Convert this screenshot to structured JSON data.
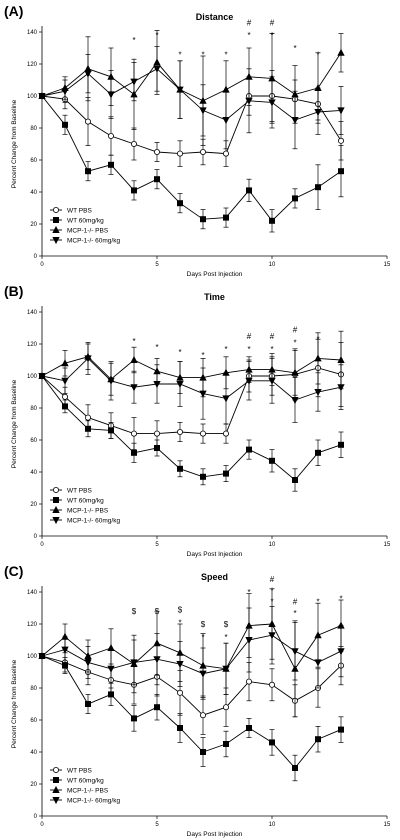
{
  "chart_data": [
    {
      "panel_label": "(A)",
      "type": "line",
      "title": "Distance",
      "xlabel": "Days Post Injection",
      "ylabel": "Percent Change from Baseline",
      "xlim": [
        0,
        15
      ],
      "ylim": [
        0,
        140
      ],
      "xticks": [
        0,
        5,
        10,
        15
      ],
      "yticks": [
        0,
        20,
        40,
        60,
        80,
        100,
        120,
        140
      ],
      "legend_position": "bottom-left",
      "series": [
        {
          "name": "WT PBS",
          "marker": "circle",
          "x": [
            0,
            1,
            2,
            3,
            4,
            5,
            6,
            7,
            8,
            9,
            10,
            11,
            12,
            13
          ],
          "values": [
            100,
            98,
            84,
            75,
            70,
            65,
            64,
            65,
            64,
            100,
            100,
            98,
            95,
            72
          ],
          "errors": [
            0,
            6,
            15,
            12,
            10,
            6,
            8,
            8,
            8,
            12,
            16,
            12,
            10,
            12
          ]
        },
        {
          "name": "WT 60mg/kg",
          "marker": "square",
          "x": [
            0,
            1,
            2,
            3,
            4,
            5,
            6,
            7,
            8,
            9,
            10,
            11,
            12,
            13
          ],
          "values": [
            100,
            82,
            53,
            57,
            41,
            48,
            33,
            23,
            24,
            41,
            22,
            36,
            43,
            53
          ],
          "errors": [
            0,
            6,
            6,
            6,
            6,
            6,
            6,
            6,
            6,
            7,
            7,
            6,
            14,
            16
          ]
        },
        {
          "name": "MCP-1-/- PBS",
          "marker": "triangle-up",
          "x": [
            0,
            1,
            2,
            3,
            4,
            5,
            6,
            7,
            8,
            9,
            10,
            11,
            12,
            13
          ],
          "values": [
            100,
            105,
            117,
            112,
            101,
            121,
            104,
            97,
            104,
            112,
            111,
            101,
            105,
            127
          ],
          "errors": [
            0,
            7,
            20,
            18,
            22,
            20,
            18,
            28,
            18,
            18,
            28,
            18,
            22,
            12
          ]
        },
        {
          "name": "MCP-1-/- 60mg/kg",
          "marker": "triangle-down",
          "x": [
            0,
            1,
            2,
            3,
            4,
            5,
            6,
            7,
            8,
            9,
            10,
            11,
            12,
            13
          ],
          "values": [
            100,
            103,
            114,
            101,
            109,
            117,
            104,
            91,
            85,
            97,
            96,
            85,
            90,
            91
          ],
          "errors": [
            0,
            7,
            12,
            15,
            12,
            14,
            18,
            16,
            18,
            20,
            16,
            18,
            14,
            15
          ]
        }
      ],
      "annotations": [
        {
          "x": 4,
          "y": 135,
          "text": "*"
        },
        {
          "x": 5,
          "y": 138,
          "text": "*"
        },
        {
          "x": 6,
          "y": 126,
          "text": "*"
        },
        {
          "x": 7,
          "y": 126,
          "text": "*"
        },
        {
          "x": 8,
          "y": 126,
          "text": "*"
        },
        {
          "x": 9,
          "y": 138,
          "text": "*"
        },
        {
          "x": 9,
          "y": 146,
          "text": "#"
        },
        {
          "x": 10,
          "y": 138,
          "text": "*"
        },
        {
          "x": 10,
          "y": 146,
          "text": "#"
        },
        {
          "x": 11,
          "y": 130,
          "text": "*"
        },
        {
          "x": 12,
          "y": 126,
          "text": "*"
        }
      ]
    },
    {
      "panel_label": "(B)",
      "type": "line",
      "title": "Time",
      "xlabel": "Days Post Injection",
      "ylabel": "Percent Change from Baseline",
      "xlim": [
        0,
        15
      ],
      "ylim": [
        0,
        140
      ],
      "xticks": [
        0,
        5,
        10,
        15
      ],
      "yticks": [
        0,
        20,
        40,
        60,
        80,
        100,
        120,
        140
      ],
      "legend_position": "bottom-left",
      "series": [
        {
          "name": "WT PBS",
          "marker": "circle",
          "x": [
            0,
            1,
            2,
            3,
            4,
            5,
            6,
            7,
            8,
            9,
            10,
            11,
            12,
            13
          ],
          "values": [
            100,
            87,
            74,
            69,
            64,
            64,
            65,
            64,
            64,
            100,
            100,
            101,
            105,
            101
          ],
          "errors": [
            0,
            6,
            8,
            8,
            10,
            8,
            6,
            6,
            6,
            10,
            12,
            16,
            18,
            20
          ]
        },
        {
          "name": "WT 60mg/kg",
          "marker": "square",
          "x": [
            0,
            1,
            2,
            3,
            4,
            5,
            6,
            7,
            8,
            9,
            10,
            11,
            12,
            13
          ],
          "values": [
            100,
            81,
            67,
            66,
            52,
            55,
            42,
            37,
            39,
            54,
            47,
            35,
            52,
            57
          ],
          "errors": [
            0,
            4,
            5,
            5,
            6,
            5,
            5,
            5,
            5,
            6,
            7,
            7,
            8,
            8
          ]
        },
        {
          "name": "MCP-1-/- PBS",
          "marker": "triangle-up",
          "x": [
            0,
            1,
            2,
            3,
            4,
            5,
            6,
            7,
            8,
            9,
            10,
            11,
            12,
            13
          ],
          "values": [
            100,
            108,
            112,
            98,
            110,
            103,
            99,
            99,
            102,
            104,
            104,
            102,
            111,
            110
          ],
          "errors": [
            0,
            8,
            8,
            10,
            8,
            8,
            10,
            12,
            10,
            8,
            10,
            14,
            16,
            18
          ]
        },
        {
          "name": "MCP-1-/- 60mg/kg",
          "marker": "triangle-down",
          "x": [
            0,
            1,
            2,
            3,
            4,
            5,
            6,
            7,
            8,
            9,
            10,
            11,
            12,
            13
          ],
          "values": [
            100,
            97,
            111,
            97,
            93,
            95,
            95,
            89,
            86,
            97,
            97,
            85,
            90,
            93
          ],
          "errors": [
            0,
            8,
            10,
            12,
            10,
            12,
            14,
            16,
            16,
            12,
            14,
            14,
            12,
            14
          ]
        }
      ],
      "annotations": [
        {
          "x": 4,
          "y": 122,
          "text": "*"
        },
        {
          "x": 5,
          "y": 118,
          "text": "*"
        },
        {
          "x": 6,
          "y": 115,
          "text": "*"
        },
        {
          "x": 7,
          "y": 113,
          "text": "*"
        },
        {
          "x": 8,
          "y": 117,
          "text": "*"
        },
        {
          "x": 9,
          "y": 117,
          "text": "*"
        },
        {
          "x": 9,
          "y": 125,
          "text": "#"
        },
        {
          "x": 10,
          "y": 117,
          "text": "*"
        },
        {
          "x": 10,
          "y": 125,
          "text": "#"
        },
        {
          "x": 11,
          "y": 121,
          "text": "*"
        },
        {
          "x": 11,
          "y": 129,
          "text": "#"
        },
        {
          "x": 12,
          "y": 123,
          "text": "*"
        }
      ]
    },
    {
      "panel_label": "(C)",
      "type": "line",
      "title": "Speed",
      "xlabel": "Days Post Injection",
      "ylabel": "Percent Change from Baseline",
      "xlim": [
        0,
        15
      ],
      "ylim": [
        0,
        140
      ],
      "xticks": [
        0,
        5,
        10,
        15
      ],
      "yticks": [
        0,
        20,
        40,
        60,
        80,
        100,
        120,
        140
      ],
      "legend_position": "bottom-left",
      "series": [
        {
          "name": "WT PBS",
          "marker": "circle",
          "x": [
            0,
            1,
            2,
            3,
            4,
            5,
            6,
            7,
            8,
            9,
            10,
            11,
            12,
            13
          ],
          "values": [
            100,
            96,
            90,
            85,
            82,
            87,
            77,
            63,
            68,
            84,
            82,
            72,
            80,
            94
          ],
          "errors": [
            0,
            6,
            8,
            10,
            12,
            12,
            14,
            12,
            12,
            12,
            10,
            10,
            12,
            12
          ]
        },
        {
          "name": "WT 60mg/kg",
          "marker": "square",
          "x": [
            0,
            1,
            2,
            3,
            4,
            5,
            6,
            7,
            8,
            9,
            10,
            11,
            12,
            13
          ],
          "values": [
            100,
            94,
            70,
            76,
            61,
            68,
            55,
            40,
            45,
            55,
            46,
            30,
            48,
            54
          ],
          "errors": [
            0,
            5,
            6,
            7,
            8,
            8,
            9,
            9,
            8,
            6,
            8,
            8,
            8,
            8
          ]
        },
        {
          "name": "MCP-1-/- PBS",
          "marker": "triangle-up",
          "x": [
            0,
            1,
            2,
            3,
            4,
            5,
            6,
            7,
            8,
            9,
            10,
            11,
            12,
            13
          ],
          "values": [
            100,
            112,
            100,
            105,
            95,
            108,
            102,
            94,
            92,
            119,
            120,
            92,
            113,
            119
          ],
          "errors": [
            0,
            8,
            10,
            12,
            18,
            20,
            18,
            20,
            16,
            20,
            22,
            30,
            20,
            16
          ]
        },
        {
          "name": "MCP-1-/- 60mg/kg",
          "marker": "triangle-down",
          "x": [
            0,
            1,
            2,
            3,
            4,
            5,
            6,
            7,
            8,
            9,
            10,
            11,
            12,
            13
          ],
          "values": [
            100,
            104,
            96,
            92,
            96,
            98,
            95,
            89,
            92,
            110,
            113,
            103,
            96,
            103
          ],
          "errors": [
            0,
            8,
            10,
            12,
            14,
            16,
            14,
            16,
            16,
            20,
            18,
            18,
            16,
            16
          ]
        }
      ],
      "annotations": [
        {
          "x": 4,
          "y": 128,
          "text": "$"
        },
        {
          "x": 5,
          "y": 128,
          "text": "$"
        },
        {
          "x": 6,
          "y": 129,
          "text": "$"
        },
        {
          "x": 6,
          "y": 121,
          "text": "*"
        },
        {
          "x": 7,
          "y": 120,
          "text": "$"
        },
        {
          "x": 7,
          "y": 112,
          "text": "*"
        },
        {
          "x": 8,
          "y": 120,
          "text": "$"
        },
        {
          "x": 8,
          "y": 112,
          "text": "*"
        },
        {
          "x": 9,
          "y": 140,
          "text": "*"
        },
        {
          "x": 10,
          "y": 148,
          "text": "#"
        },
        {
          "x": 10,
          "y": 141,
          "text": "*"
        },
        {
          "x": 10,
          "y": 134,
          "text": "*"
        },
        {
          "x": 11,
          "y": 134,
          "text": "#"
        },
        {
          "x": 11,
          "y": 127,
          "text": "*"
        },
        {
          "x": 12,
          "y": 134,
          "text": "*"
        },
        {
          "x": 13,
          "y": 136,
          "text": "*"
        }
      ]
    }
  ]
}
